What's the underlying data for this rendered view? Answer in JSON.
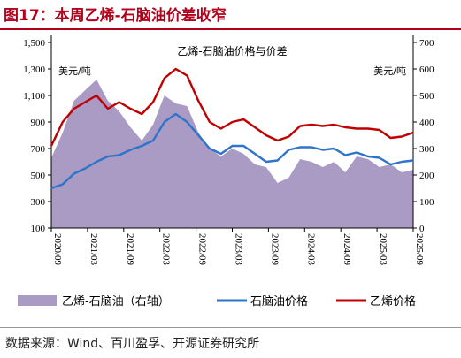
{
  "header": {
    "title": "图17：本周乙烯-石脑油价差收窄"
  },
  "footer": {
    "source": "数据来源：Wind、百川盈孚、开源证券研究所"
  },
  "colors": {
    "title": "#b3001b",
    "spread_fill": "#a99bc4",
    "naphtha_line": "#2f74c9",
    "ethylene_line": "#c00000",
    "axis": "#000000"
  },
  "chart_data": {
    "type": "line",
    "title": "乙烯-石脑油价格与价差",
    "left_unit": "美元/吨",
    "right_unit": "美元/吨",
    "x_ticks": [
      "2020/09",
      "2021/03",
      "2021/09",
      "2022/03",
      "2022/09",
      "2023/03",
      "2023/09",
      "2024/03",
      "2024/09",
      "2025/03",
      "2025/09"
    ],
    "y_left": {
      "min": 100,
      "max": 1500,
      "ticks": [
        "100",
        "300",
        "500",
        "700",
        "900",
        "1,100",
        "1,300",
        "1,500"
      ]
    },
    "y_right": {
      "min": 0,
      "max": 700,
      "ticks": [
        "0",
        "100",
        "200",
        "300",
        "400",
        "500",
        "600",
        "700"
      ]
    },
    "x": [
      "2020/09",
      "2020/11",
      "2021/01",
      "2021/02",
      "2021/03",
      "2021/05",
      "2021/07",
      "2021/09",
      "2021/11",
      "2022/01",
      "2022/03",
      "2022/04",
      "2022/05",
      "2022/07",
      "2022/09",
      "2022/11",
      "2023/01",
      "2023/03",
      "2023/05",
      "2023/07",
      "2023/09",
      "2023/11",
      "2024/01",
      "2024/03",
      "2024/05",
      "2024/07",
      "2024/09",
      "2024/11",
      "2025/01",
      "2025/03",
      "2025/05",
      "2025/07",
      "2025/09"
    ],
    "series": [
      {
        "name": "乙烯-石脑油（右轴）",
        "axis": "right",
        "style": "area",
        "values": [
          265,
          360,
          480,
          520,
          560,
          480,
          440,
          380,
          330,
          390,
          500,
          470,
          460,
          360,
          300,
          270,
          300,
          280,
          240,
          230,
          170,
          190,
          260,
          250,
          230,
          250,
          210,
          270,
          260,
          230,
          240,
          210,
          220
        ]
      },
      {
        "name": "石脑油价格",
        "axis": "left",
        "style": "line",
        "values": [
          400,
          430,
          510,
          550,
          600,
          640,
          650,
          690,
          720,
          760,
          900,
          960,
          900,
          800,
          700,
          660,
          720,
          720,
          660,
          600,
          610,
          690,
          710,
          710,
          690,
          700,
          650,
          670,
          640,
          630,
          580,
          600,
          610
        ]
      },
      {
        "name": "乙烯价格",
        "axis": "left",
        "style": "line",
        "values": [
          720,
          900,
          1000,
          1050,
          1100,
          1000,
          1050,
          1000,
          960,
          1050,
          1230,
          1300,
          1250,
          1060,
          900,
          850,
          900,
          920,
          860,
          800,
          760,
          790,
          870,
          880,
          870,
          880,
          860,
          850,
          850,
          840,
          780,
          790,
          820
        ]
      }
    ],
    "legend": {
      "position": "bottom",
      "items": [
        "乙烯-石脑油（右轴）",
        "石脑油价格",
        "乙烯价格"
      ]
    },
    "grid": false
  }
}
